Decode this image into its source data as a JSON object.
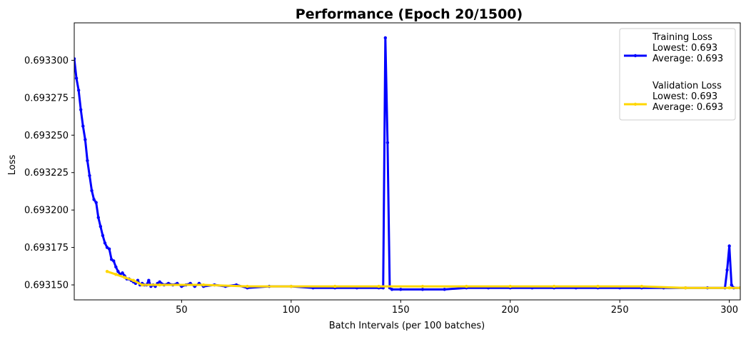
{
  "chart_data": {
    "type": "line",
    "title": "Performance (Epoch 20/1500)",
    "xlabel": "Batch Intervals (per 100 batches)",
    "ylabel": "Loss",
    "xlim": [
      1,
      305
    ],
    "ylim": [
      0.69314,
      0.693325
    ],
    "xticks": [
      50,
      100,
      150,
      200,
      250,
      300
    ],
    "yticks": [
      0.69315,
      0.693175,
      0.6932,
      0.693225,
      0.69325,
      0.693275,
      0.6933
    ],
    "ytick_labels": [
      "0.693150",
      "0.693175",
      "0.693200",
      "0.693225",
      "0.693250",
      "0.693275",
      "0.693300"
    ],
    "grid": false,
    "legend_position": "top-right",
    "series": [
      {
        "name": "Training Loss",
        "color": "#0000ff",
        "marker": "dot",
        "legend_lines": [
          "Training Loss",
          "Lowest: 0.693",
          "Average: 0.693"
        ],
        "points": [
          [
            1,
            0.693301
          ],
          [
            2,
            0.693288
          ],
          [
            3,
            0.69328
          ],
          [
            4,
            0.693267
          ],
          [
            5,
            0.693256
          ],
          [
            6,
            0.693247
          ],
          [
            7,
            0.693233
          ],
          [
            8,
            0.693223
          ],
          [
            9,
            0.693213
          ],
          [
            10,
            0.693207
          ],
          [
            11,
            0.693205
          ],
          [
            12,
            0.693195
          ],
          [
            13,
            0.693189
          ],
          [
            14,
            0.693183
          ],
          [
            15,
            0.693178
          ],
          [
            16,
            0.693175
          ],
          [
            17,
            0.693174
          ],
          [
            18,
            0.693167
          ],
          [
            19,
            0.693166
          ],
          [
            20,
            0.693162
          ],
          [
            21,
            0.693159
          ],
          [
            22,
            0.693157
          ],
          [
            23,
            0.693158
          ],
          [
            24,
            0.693156
          ],
          [
            25,
            0.693154
          ],
          [
            26,
            0.693154
          ],
          [
            27,
            0.693153
          ],
          [
            28,
            0.693152
          ],
          [
            29,
            0.693151
          ],
          [
            30,
            0.693153
          ],
          [
            31,
            0.69315
          ],
          [
            32,
            0.693151
          ],
          [
            33,
            0.69315
          ],
          [
            34,
            0.69315
          ],
          [
            35,
            0.693153
          ],
          [
            36,
            0.693149
          ],
          [
            37,
            0.69315
          ],
          [
            38,
            0.693149
          ],
          [
            39,
            0.693151
          ],
          [
            40,
            0.693152
          ],
          [
            42,
            0.69315
          ],
          [
            44,
            0.693151
          ],
          [
            46,
            0.69315
          ],
          [
            48,
            0.693151
          ],
          [
            50,
            0.693149
          ],
          [
            52,
            0.69315
          ],
          [
            54,
            0.693151
          ],
          [
            56,
            0.693149
          ],
          [
            58,
            0.693151
          ],
          [
            60,
            0.693149
          ],
          [
            65,
            0.69315
          ],
          [
            70,
            0.693149
          ],
          [
            75,
            0.69315
          ],
          [
            80,
            0.693148
          ],
          [
            90,
            0.693149
          ],
          [
            100,
            0.693149
          ],
          [
            110,
            0.693148
          ],
          [
            120,
            0.693148
          ],
          [
            130,
            0.693148
          ],
          [
            140,
            0.693148
          ],
          [
            142,
            0.693148
          ],
          [
            143,
            0.693315
          ],
          [
            144,
            0.693245
          ],
          [
            145,
            0.693148
          ],
          [
            146,
            0.693147
          ],
          [
            150,
            0.693147
          ],
          [
            160,
            0.693147
          ],
          [
            170,
            0.693147
          ],
          [
            180,
            0.693148
          ],
          [
            190,
            0.693148
          ],
          [
            200,
            0.693148
          ],
          [
            210,
            0.693148
          ],
          [
            220,
            0.693148
          ],
          [
            230,
            0.693148
          ],
          [
            240,
            0.693148
          ],
          [
            250,
            0.693148
          ],
          [
            260,
            0.693148
          ],
          [
            270,
            0.693148
          ],
          [
            280,
            0.693148
          ],
          [
            290,
            0.693148
          ],
          [
            298,
            0.693148
          ],
          [
            299,
            0.69316
          ],
          [
            300,
            0.693176
          ],
          [
            301,
            0.69315
          ],
          [
            302,
            0.693148
          ],
          [
            305,
            0.693148
          ]
        ]
      },
      {
        "name": "Validation Loss",
        "color": "#ffd700",
        "marker": "dot",
        "legend_lines": [
          "Validation Loss",
          "Lowest: 0.693",
          "Average: 0.693"
        ],
        "points": [
          [
            16,
            0.693159
          ],
          [
            20,
            0.693157
          ],
          [
            24,
            0.693155
          ],
          [
            28,
            0.693153
          ],
          [
            32,
            0.69315
          ],
          [
            40,
            0.69315
          ],
          [
            60,
            0.69315
          ],
          [
            80,
            0.693149
          ],
          [
            100,
            0.693149
          ],
          [
            120,
            0.693149
          ],
          [
            140,
            0.693149
          ],
          [
            160,
            0.693149
          ],
          [
            180,
            0.693149
          ],
          [
            200,
            0.693149
          ],
          [
            220,
            0.693149
          ],
          [
            240,
            0.693149
          ],
          [
            260,
            0.693149
          ],
          [
            280,
            0.693148
          ],
          [
            300,
            0.693148
          ],
          [
            305,
            0.693148
          ]
        ]
      }
    ]
  }
}
